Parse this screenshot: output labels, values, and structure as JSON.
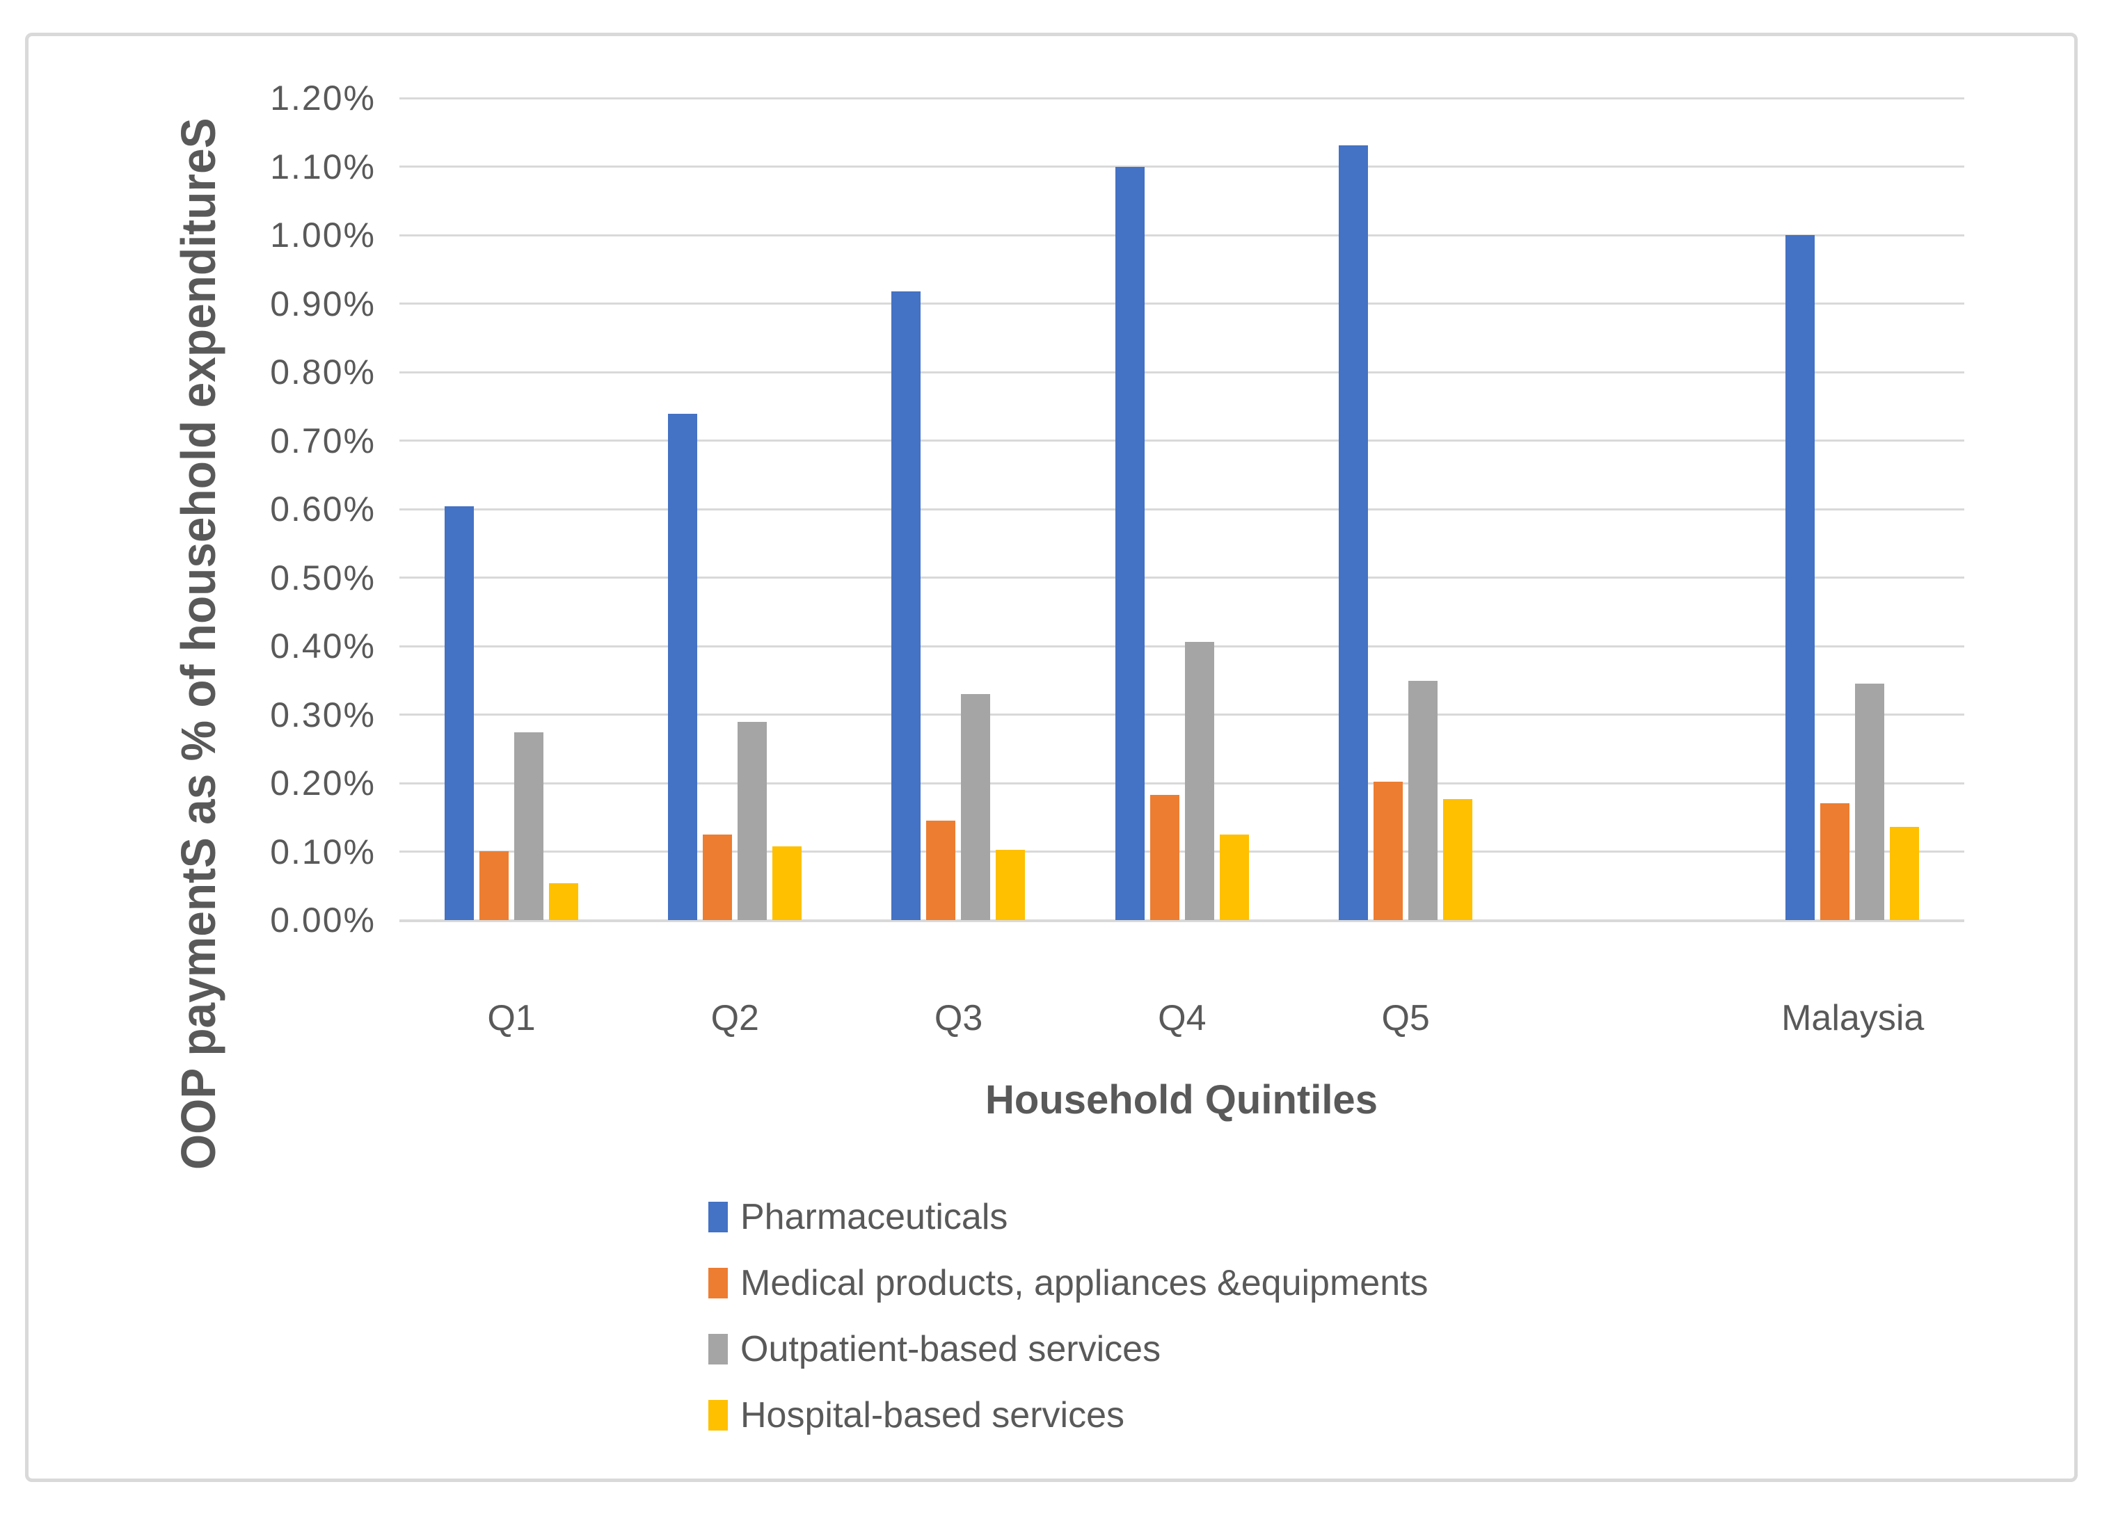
{
  "figure": {
    "background": "#FFFFFF",
    "border_color": "#D9D9D9",
    "text_color": "#595959",
    "gridline_color": "#D9D9D9"
  },
  "chart_data": {
    "type": "bar",
    "title": "",
    "xlabel": "Household Quintiles",
    "ylabel": "OOP paymentS as % of household expenditureS",
    "categories": [
      "Q1",
      "Q2",
      "Q3",
      "Q4",
      "Q5",
      "",
      "Malaysia"
    ],
    "series": [
      {
        "name": "Pharmaceuticals",
        "color": "#4472C4",
        "values": [
          0.604,
          0.739,
          0.918,
          1.1,
          1.131,
          null,
          1.0
        ]
      },
      {
        "name": "Medical products, appliances &equipments",
        "color": "#ED7D31",
        "values": [
          0.101,
          0.125,
          0.145,
          0.183,
          0.202,
          null,
          0.171
        ]
      },
      {
        "name": "Outpatient-based services",
        "color": "#A5A5A5",
        "values": [
          0.274,
          0.289,
          0.33,
          0.406,
          0.349,
          null,
          0.345
        ]
      },
      {
        "name": "Hospital-based services",
        "color": "#FFC000",
        "values": [
          0.054,
          0.108,
          0.103,
          0.125,
          0.177,
          null,
          0.136
        ]
      }
    ],
    "y_axis": {
      "min": 0,
      "max": 1.2,
      "step": 0.1,
      "tick_labels": [
        "0.00%",
        "0.10%",
        "0.20%",
        "0.30%",
        "0.40%",
        "0.50%",
        "0.60%",
        "0.70%",
        "0.80%",
        "0.90%",
        "1.00%",
        "1.10%",
        "1.20%"
      ],
      "grid": true
    },
    "legend_position": "bottom-left",
    "legend": [
      "Pharmaceuticals",
      "Medical products, appliances &equipments",
      "Outpatient-based services",
      "Hospital-based services"
    ]
  }
}
